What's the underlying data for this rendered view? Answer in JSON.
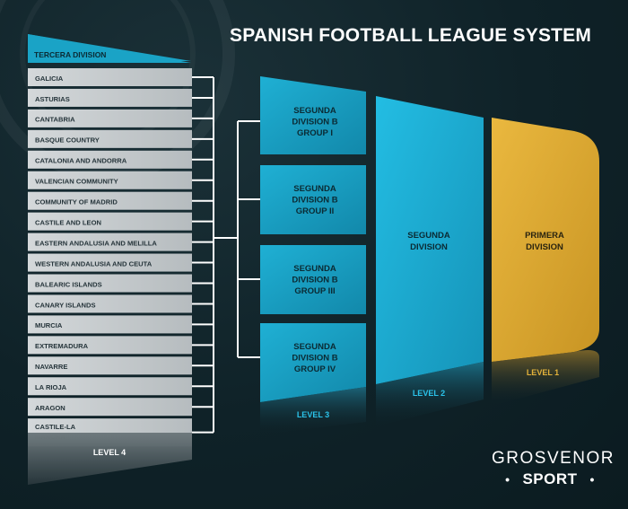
{
  "title": "SPANISH FOOTBALL LEAGUE SYSTEM",
  "colors": {
    "background": "#0f2228",
    "level4": "#c9ced1",
    "level3": "#1aa3c6",
    "level2": "#1eb6dd",
    "level1": "#e3b23b"
  },
  "level4": {
    "header": "TERCERA DIVISION",
    "level_label": "LEVEL 4",
    "regions": [
      "GALICIA",
      "ASTURIAS",
      "CANTABRIA",
      "BASQUE COUNTRY",
      "CATALONIA AND ANDORRA",
      "VALENCIAN COMMUNITY",
      "COMMUNITY OF MADRID",
      "CASTILE AND LEON",
      "EASTERN ANDALUSIA AND MELILLA",
      "WESTERN ANDALUSIA AND CEUTA",
      "BALEARIC ISLANDS",
      "CANARY ISLANDS",
      "MURCIA",
      "EXTREMADURA",
      "NAVARRE",
      "LA RIOJA",
      "ARAGON",
      "CASTILE-LA MANCHA"
    ]
  },
  "level3": {
    "level_label": "LEVEL 3",
    "groups": [
      [
        "SEGUNDA",
        "DIVISION B",
        "GROUP I"
      ],
      [
        "SEGUNDA",
        "DIVISION B",
        "GROUP II"
      ],
      [
        "SEGUNDA",
        "DIVISION B",
        "GROUP III"
      ],
      [
        "SEGUNDA",
        "DIVISION B",
        "GROUP IV"
      ]
    ]
  },
  "level2": {
    "name_lines": [
      "SEGUNDA",
      "DIVISION"
    ],
    "level_label": "LEVEL 2"
  },
  "level1": {
    "name_lines": [
      "PRIMERA",
      "DIVISION"
    ],
    "level_label": "LEVEL 1"
  },
  "brand": {
    "line1": "GROSVENOR",
    "line2": "SPORT",
    "dot": "•"
  }
}
